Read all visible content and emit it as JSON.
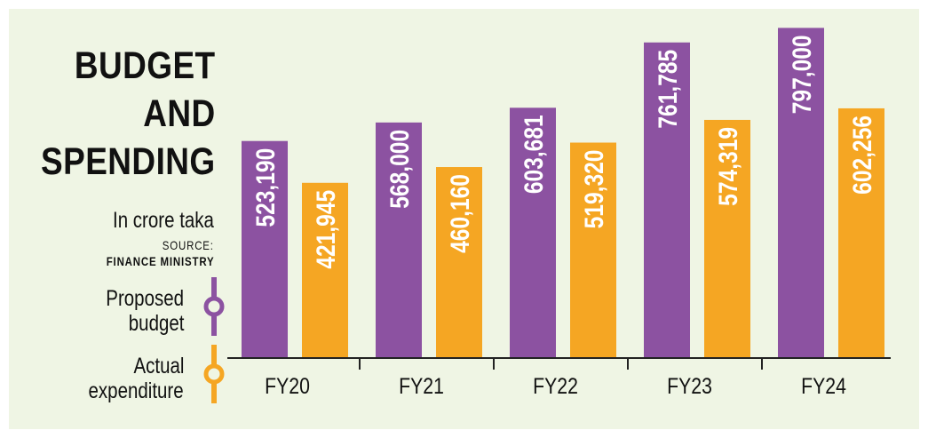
{
  "title_lines": [
    "BUDGET",
    "AND",
    "SPENDING"
  ],
  "unit_label": "In crore taka",
  "source_label": "SOURCE:",
  "source_name": "FINANCE MINISTRY",
  "legend": {
    "proposed_lines": [
      "Proposed",
      "budget"
    ],
    "actual_lines": [
      "Actual",
      "expenditure"
    ]
  },
  "colors": {
    "background": "#eff5e4",
    "proposed": "#8c52a1",
    "actual": "#f5a623",
    "axis": "#222222"
  },
  "chart_data": {
    "type": "bar",
    "title": "BUDGET AND SPENDING",
    "ylabel": "In crore taka",
    "categories": [
      "FY20",
      "FY21",
      "FY22",
      "FY23",
      "FY24"
    ],
    "series": [
      {
        "name": "Proposed budget",
        "values": [
          523190,
          568000,
          603681,
          761785,
          797000
        ],
        "labels": [
          "523,190",
          "568,000",
          "603,681",
          "761,785",
          "797,000"
        ]
      },
      {
        "name": "Actual expenditure",
        "values": [
          421945,
          460160,
          519320,
          574319,
          602256
        ],
        "labels": [
          "421,945",
          "460,160",
          "519,320",
          "574,319",
          "602,256"
        ]
      }
    ],
    "ylim": [
      0,
      800000
    ],
    "grid": false,
    "legend_position": "left"
  }
}
